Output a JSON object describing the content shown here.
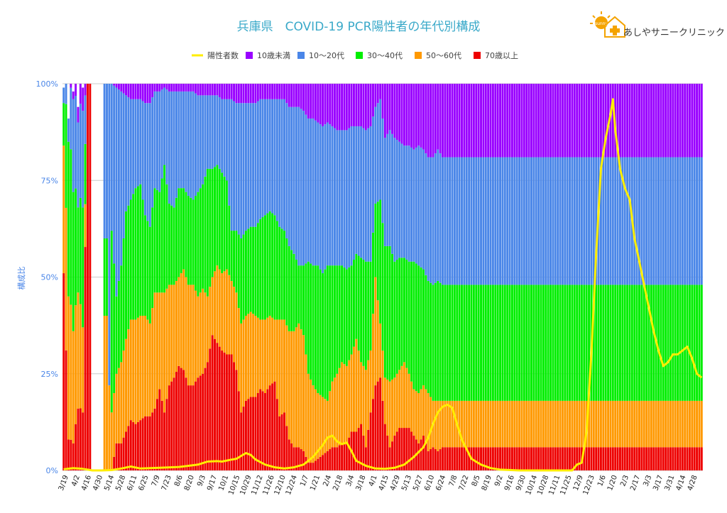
{
  "clinic_name": "あしやサニークリニック",
  "logo_badge": "sunny",
  "colors": {
    "cases": "#ffee00",
    "u10": "#9900ff",
    "a10_20": "#4a86e8",
    "a30_40": "#00ee00",
    "a50_60": "#ff9900",
    "a70": "#ee0000",
    "title": "#3aa9c9"
  },
  "chart_data": {
    "type": "bar",
    "stacked": true,
    "title": "兵庫県　COVID-19 PCR陽性者の年代別構成",
    "ylabel": "構成比",
    "ylim": [
      0,
      100
    ],
    "yticks": [
      "0%",
      "25%",
      "50%",
      "75%",
      "100%"
    ],
    "grid": true,
    "legend_position": "top",
    "legend": [
      "陽性者数",
      "10歳未満",
      "10～20代",
      "30～40代",
      "50～60代",
      "70歳以上"
    ],
    "x_tick_labels": [
      "3/19",
      "4/2",
      "4/16",
      "4/30",
      "5/14",
      "5/28",
      "6/11",
      "6/25",
      "7/9",
      "7/23",
      "8/6",
      "8/20",
      "9/3",
      "9/17",
      "10/1",
      "10/15",
      "10/29",
      "11/12",
      "11/26",
      "12/10",
      "12/24",
      "1/7",
      "1/21",
      "2/4",
      "2/18",
      "3/4",
      "3/18",
      "4/1",
      "4/15",
      "4/29",
      "5/13",
      "5/27",
      "6/10",
      "6/24",
      "7/8",
      "7/22",
      "8/5",
      "8/19",
      "9/2",
      "9/16",
      "9/30",
      "10/14",
      "10/28",
      "11/11",
      "11/25",
      "12/9",
      "12/23",
      "1/6",
      "1/20",
      "2/3",
      "2/17",
      "3/3",
      "3/17",
      "3/31",
      "4/14",
      "4/28"
    ],
    "series_names": [
      "10歳未満",
      "10～20代",
      "30～40代",
      "50～60代",
      "70歳以上"
    ],
    "line_series_name": "陽性者数",
    "line_series_axis": "none",
    "anchors": [
      [
        0,
        0,
        4,
        11,
        33,
        51
      ],
      [
        2,
        0,
        6,
        40,
        37,
        8
      ],
      [
        4,
        2,
        24,
        36,
        29,
        7
      ],
      [
        6,
        4,
        22,
        22,
        30,
        16
      ],
      [
        8,
        6,
        25,
        31,
        22,
        15
      ],
      [
        10,
        0,
        0,
        0,
        0,
        100
      ],
      [
        12,
        0,
        0,
        0,
        0,
        0
      ],
      [
        14,
        0,
        0,
        0,
        0,
        0
      ],
      [
        16,
        0,
        0,
        0,
        0,
        0
      ],
      [
        18,
        0,
        40,
        20,
        40,
        0
      ],
      [
        19,
        0,
        78,
        0,
        22,
        0
      ],
      [
        20,
        0,
        38,
        47,
        15,
        0
      ],
      [
        22,
        1,
        54,
        20,
        18,
        7
      ],
      [
        24,
        2,
        45,
        25,
        21,
        7
      ],
      [
        26,
        3,
        30,
        33,
        24,
        10
      ],
      [
        28,
        4,
        26,
        31,
        26,
        13
      ],
      [
        30,
        4,
        23,
        34,
        27,
        12
      ],
      [
        32,
        4,
        22,
        34,
        27,
        13
      ],
      [
        34,
        5,
        29,
        26,
        26,
        14
      ],
      [
        36,
        5,
        32,
        25,
        24,
        14
      ],
      [
        38,
        2,
        25,
        27,
        30,
        16
      ],
      [
        40,
        2,
        26,
        26,
        25,
        21
      ],
      [
        42,
        1,
        20,
        33,
        31,
        15
      ],
      [
        44,
        2,
        29,
        21,
        26,
        22
      ],
      [
        46,
        2,
        30,
        20,
        24,
        24
      ],
      [
        48,
        2,
        25,
        23,
        23,
        27
      ],
      [
        50,
        2,
        25,
        21,
        26,
        26
      ],
      [
        52,
        2,
        27,
        23,
        26,
        22
      ],
      [
        54,
        2,
        28,
        22,
        26,
        22
      ],
      [
        56,
        3,
        25,
        27,
        21,
        24
      ],
      [
        58,
        3,
        23,
        27,
        22,
        25
      ],
      [
        60,
        3,
        19,
        33,
        17,
        28
      ],
      [
        62,
        3,
        19,
        28,
        15,
        35
      ],
      [
        64,
        3,
        18,
        26,
        20,
        33
      ],
      [
        66,
        4,
        19,
        26,
        20,
        31
      ],
      [
        68,
        4,
        21,
        23,
        22,
        30
      ],
      [
        70,
        4,
        34,
        13,
        19,
        30
      ],
      [
        72,
        5,
        33,
        16,
        20,
        26
      ],
      [
        74,
        5,
        35,
        22,
        23,
        15
      ],
      [
        76,
        5,
        33,
        22,
        22,
        18
      ],
      [
        78,
        5,
        32,
        22,
        22,
        19
      ],
      [
        80,
        5,
        32,
        23,
        21,
        19
      ],
      [
        82,
        4,
        31,
        26,
        18,
        21
      ],
      [
        84,
        4,
        30,
        27,
        19,
        20
      ],
      [
        86,
        4,
        29,
        27,
        18,
        22
      ],
      [
        88,
        4,
        30,
        27,
        16,
        23
      ],
      [
        90,
        4,
        33,
        24,
        25,
        14
      ],
      [
        92,
        4,
        34,
        23,
        24,
        15
      ],
      [
        94,
        6,
        36,
        22,
        28,
        8
      ],
      [
        96,
        6,
        38,
        20,
        30,
        6
      ],
      [
        98,
        6,
        41,
        15,
        32,
        6
      ],
      [
        100,
        7,
        40,
        18,
        30,
        5
      ],
      [
        102,
        9,
        37,
        29,
        23,
        2
      ],
      [
        104,
        9,
        38,
        31,
        20,
        2
      ],
      [
        106,
        10,
        37,
        33,
        17,
        3
      ],
      [
        108,
        11,
        38,
        32,
        15,
        4
      ],
      [
        110,
        10,
        37,
        35,
        13,
        5
      ],
      [
        112,
        11,
        36,
        30,
        17,
        6
      ],
      [
        114,
        12,
        35,
        28,
        19,
        6
      ],
      [
        116,
        12,
        35,
        25,
        21,
        7
      ],
      [
        118,
        12,
        36,
        25,
        20,
        7
      ],
      [
        120,
        11,
        36,
        23,
        20,
        10
      ],
      [
        122,
        11,
        33,
        22,
        24,
        10
      ],
      [
        124,
        11,
        34,
        27,
        16,
        12
      ],
      [
        126,
        12,
        34,
        28,
        20,
        6
      ],
      [
        128,
        11,
        35,
        23,
        16,
        15
      ],
      [
        130,
        6,
        25,
        19,
        28,
        22
      ],
      [
        132,
        4,
        26,
        32,
        14,
        24
      ],
      [
        134,
        14,
        28,
        34,
        12,
        12
      ],
      [
        136,
        12,
        30,
        35,
        17,
        6
      ],
      [
        138,
        14,
        32,
        30,
        15,
        9
      ],
      [
        140,
        15,
        30,
        29,
        15,
        11
      ],
      [
        142,
        16,
        29,
        27,
        17,
        11
      ],
      [
        144,
        16,
        30,
        29,
        14,
        11
      ],
      [
        146,
        17,
        29,
        33,
        12,
        9
      ],
      [
        148,
        16,
        31,
        33,
        13,
        7
      ],
      [
        150,
        17,
        31,
        30,
        13,
        9
      ],
      [
        152,
        19,
        32,
        29,
        15,
        5
      ],
      [
        154,
        19,
        33,
        30,
        12,
        6
      ],
      [
        156,
        17,
        34,
        31,
        13,
        5
      ],
      [
        158,
        19,
        33,
        30,
        12,
        6
      ]
    ],
    "cases_line": [
      [
        0,
        0.3
      ],
      [
        4,
        0.6
      ],
      [
        8,
        0.4
      ],
      [
        10,
        0.2
      ],
      [
        12,
        0
      ],
      [
        16,
        0
      ],
      [
        20,
        0.1
      ],
      [
        24,
        0.5
      ],
      [
        28,
        1
      ],
      [
        32,
        0.5
      ],
      [
        40,
        0.7
      ],
      [
        48,
        0.9
      ],
      [
        52,
        1.2
      ],
      [
        56,
        1.5
      ],
      [
        60,
        2.3
      ],
      [
        64,
        2.4
      ],
      [
        66,
        2.3
      ],
      [
        70,
        2.8
      ],
      [
        72,
        3
      ],
      [
        76,
        4.5
      ],
      [
        78,
        4
      ],
      [
        80,
        2.8
      ],
      [
        84,
        1.5
      ],
      [
        88,
        0.8
      ],
      [
        92,
        0.5
      ],
      [
        96,
        0.8
      ],
      [
        100,
        1.5
      ],
      [
        104,
        3.5
      ],
      [
        108,
        6.5
      ],
      [
        110,
        8.5
      ],
      [
        112,
        9
      ],
      [
        114,
        7.5
      ],
      [
        116,
        6.8
      ],
      [
        118,
        7.2
      ],
      [
        120,
        5
      ],
      [
        122,
        2.5
      ],
      [
        126,
        1.2
      ],
      [
        130,
        0.5
      ],
      [
        134,
        0.4
      ],
      [
        138,
        0.7
      ],
      [
        142,
        1.5
      ],
      [
        146,
        3.5
      ],
      [
        150,
        6
      ],
      [
        152,
        8.5
      ],
      [
        154,
        12
      ],
      [
        156,
        15
      ],
      [
        158,
        16.5
      ],
      [
        160,
        17
      ],
      [
        162,
        16.2
      ],
      [
        164,
        12
      ],
      [
        166,
        8
      ],
      [
        170,
        3
      ],
      [
        174,
        1.5
      ],
      [
        178,
        0.6
      ],
      [
        182,
        0.2
      ],
      [
        190,
        0
      ],
      [
        200,
        0
      ],
      [
        210,
        0
      ],
      [
        212,
        0
      ],
      [
        214,
        1.5
      ],
      [
        216,
        2
      ],
      [
        218,
        10
      ],
      [
        220,
        30
      ],
      [
        222,
        56
      ],
      [
        224,
        78
      ],
      [
        226,
        86
      ],
      [
        228,
        92
      ],
      [
        229,
        96
      ],
      [
        230,
        88
      ],
      [
        232,
        78
      ],
      [
        234,
        73
      ],
      [
        236,
        70
      ],
      [
        238,
        60
      ],
      [
        240,
        54
      ],
      [
        242,
        48
      ],
      [
        244,
        42
      ],
      [
        246,
        36
      ],
      [
        248,
        31
      ],
      [
        250,
        27
      ],
      [
        252,
        28
      ],
      [
        254,
        30
      ],
      [
        256,
        30
      ],
      [
        258,
        31
      ],
      [
        260,
        32
      ],
      [
        262,
        29
      ],
      [
        264,
        25
      ],
      [
        266,
        24
      ]
    ]
  }
}
